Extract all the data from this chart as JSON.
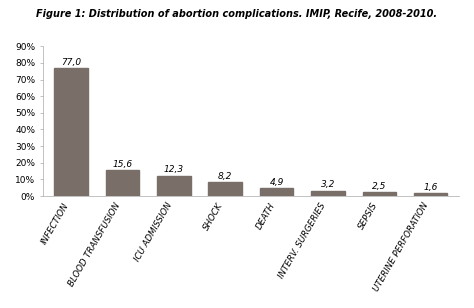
{
  "title": "Figure 1: Distribution of abortion complications. IMIP, Recife, 2008-2010.",
  "categories": [
    "INFECTION",
    "BLOOD TRANSFUSION",
    "ICU ADMISSION",
    "SHOCK",
    "DEATH",
    "INTERV. SURGERIES",
    "SEPSIS",
    "UTERINE PERFORATION"
  ],
  "values": [
    77.0,
    15.6,
    12.3,
    8.2,
    4.9,
    3.2,
    2.5,
    1.6
  ],
  "labels": [
    "77,0",
    "15,6",
    "12,3",
    "8,2",
    "4,9",
    "3,2",
    "2,5",
    "1,6"
  ],
  "bar_color": "#7a6e68",
  "background_color": "#ffffff",
  "ylim": [
    0,
    90
  ],
  "yticks": [
    0,
    10,
    20,
    30,
    40,
    50,
    60,
    70,
    80,
    90
  ],
  "ytick_labels": [
    "0%",
    "10%",
    "20%",
    "30%",
    "40%",
    "50%",
    "60%",
    "70%",
    "80%",
    "90%"
  ],
  "title_fontsize": 7.0,
  "label_fontsize": 6.2,
  "tick_fontsize": 6.5,
  "value_fontsize": 6.5
}
